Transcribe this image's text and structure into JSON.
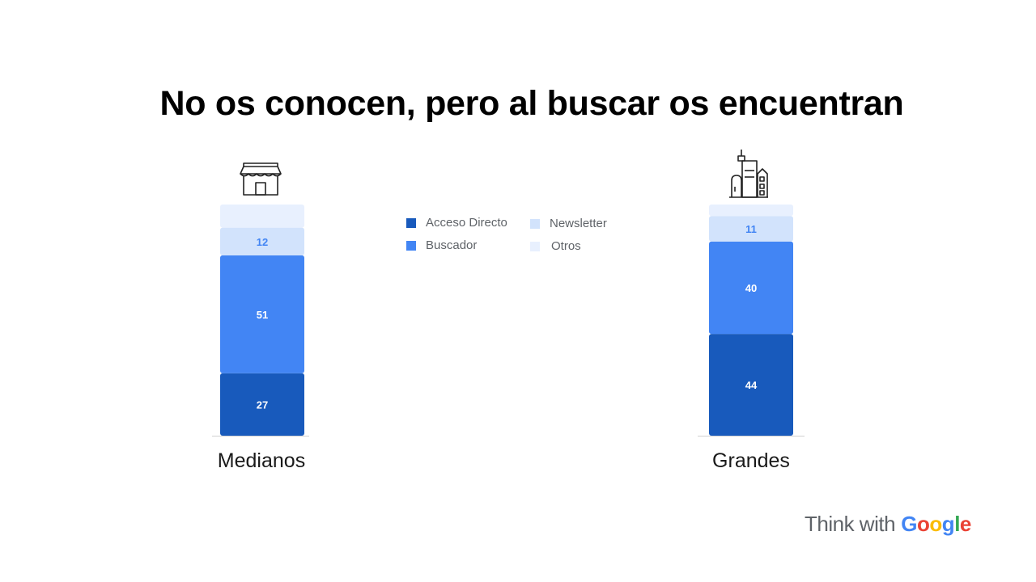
{
  "title": "No os conocen, pero al buscar os encuentran",
  "brand": {
    "prefix": "Think with",
    "google_letters": [
      {
        "char": "G",
        "color": "#4285F4"
      },
      {
        "char": "o",
        "color": "#EA4335"
      },
      {
        "char": "o",
        "color": "#FBBC05"
      },
      {
        "char": "g",
        "color": "#4285F4"
      },
      {
        "char": "l",
        "color": "#34A853"
      },
      {
        "char": "e",
        "color": "#EA4335"
      }
    ]
  },
  "icons": {
    "medianos": "storefront-icon",
    "grandes": "city-buildings-icon"
  },
  "chart_data": {
    "type": "bar",
    "stacked": true,
    "categories": [
      "Medianos",
      "Grandes"
    ],
    "series": [
      {
        "name": "Acceso Directo",
        "color": "#185ABC",
        "values": [
          27,
          44
        ],
        "label_color": "#ffffff"
      },
      {
        "name": "Buscador",
        "color": "#4285F4",
        "values": [
          51,
          40
        ],
        "label_color": "#ffffff"
      },
      {
        "name": "Newsletter",
        "color": "#D2E3FC",
        "values": [
          12,
          11
        ],
        "label_color": "#4285F4"
      },
      {
        "name": "Otros",
        "color": "#E8F0FE",
        "values": [
          10,
          5
        ],
        "label_color": null
      }
    ],
    "data_labels": [
      [
        "27",
        "51",
        "12",
        ""
      ],
      [
        "44",
        "40",
        "11",
        ""
      ]
    ],
    "ylim": [
      0,
      100
    ],
    "xlabel": "",
    "ylabel": "",
    "grid": false,
    "legend_position": "center"
  }
}
